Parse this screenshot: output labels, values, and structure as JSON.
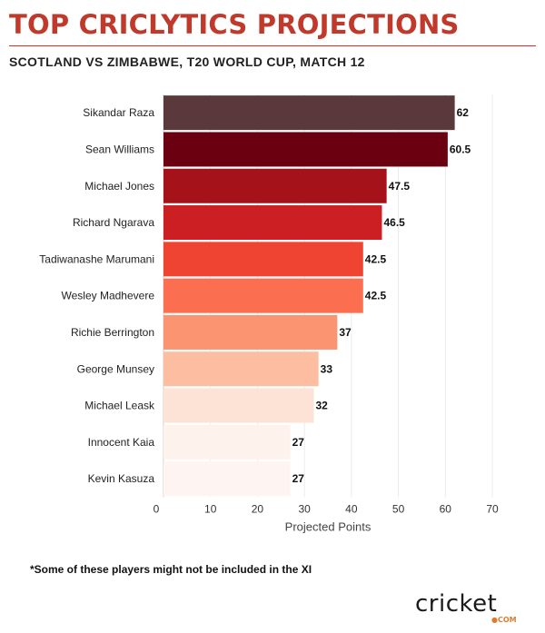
{
  "page": {
    "title": "TOP CRICLYTICS PROJECTIONS",
    "subtitle": "SCOTLAND VS ZIMBABWE, T20 WORLD CUP, MATCH 12",
    "footnote": "*Some of these players might not be included in the XI",
    "logo_text": "cricket",
    "logo_sub": "●COM"
  },
  "colors": {
    "title": "#c0392b",
    "bars": [
      "#5b383b",
      "#6a0010",
      "#a5121a",
      "#cc1f24",
      "#f04432",
      "#fb6e50",
      "#fb9470",
      "#fcbda0",
      "#fde2d6",
      "#fef2ed",
      "#fef5f2"
    ]
  },
  "chart_data": {
    "type": "bar",
    "orientation": "horizontal",
    "categories": [
      "Sikandar Raza",
      "Sean Williams",
      "Michael Jones",
      "Richard Ngarava",
      "Tadiwanashe Marumani",
      "Wesley Madhevere",
      "Richie Berrington",
      "George Munsey",
      "Michael Leask",
      "Innocent Kaia",
      "Kevin Kasuza"
    ],
    "values": [
      62,
      60.5,
      47.5,
      46.5,
      42.5,
      42.5,
      37,
      33,
      32,
      27,
      27
    ],
    "value_labels": [
      "62",
      "60.5",
      "47.5",
      "46.5",
      "42.5",
      "42.5",
      "37",
      "33",
      "32",
      "27",
      "27"
    ],
    "xlabel": "Projected Points",
    "xlim": [
      0,
      70
    ],
    "ticks": [
      0,
      10,
      20,
      30,
      40,
      50,
      60,
      70
    ],
    "grid": true
  }
}
